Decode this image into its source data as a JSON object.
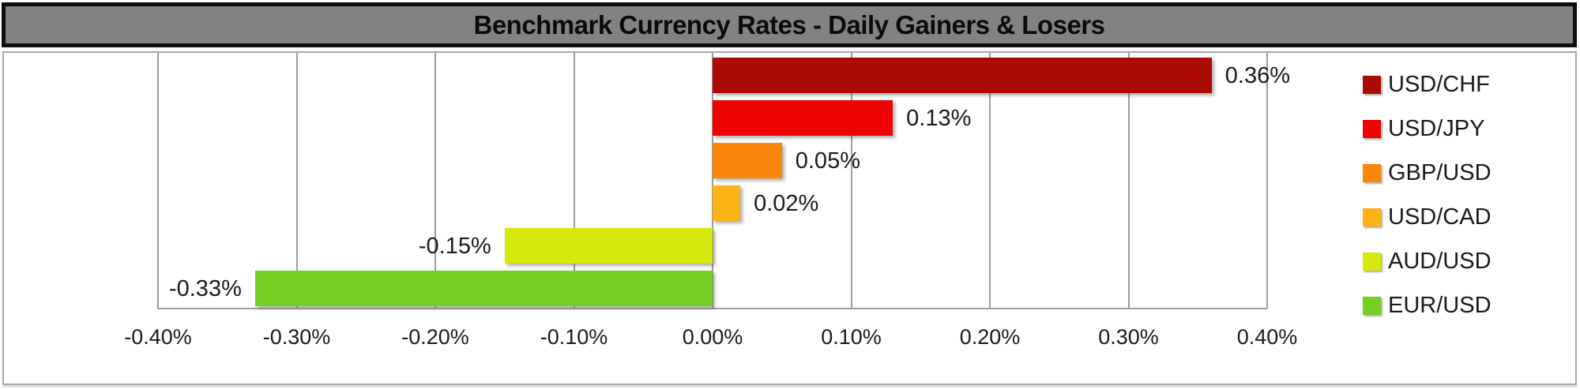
{
  "title": "Benchmark Currency Rates - Daily Gainers & Losers",
  "colors": {
    "title_background": "#828282",
    "title_border": "#0e0e0e",
    "chart_border": "#a6a6a6",
    "gridline": "#9d9d9d",
    "text": "#1a1a1a"
  },
  "chart_data": {
    "type": "bar",
    "orientation": "horizontal",
    "title": "Benchmark Currency Rates - Daily Gainers & Losers",
    "categories": [
      "USD/CHF",
      "USD/JPY",
      "GBP/USD",
      "USD/CAD",
      "AUD/USD",
      "EUR/USD"
    ],
    "values": [
      0.36,
      0.13,
      0.05,
      0.02,
      -0.15,
      -0.33
    ],
    "value_labels": [
      "0.36%",
      "0.13%",
      "0.05%",
      "0.02%",
      "-0.15%",
      "-0.33%"
    ],
    "bar_colors": [
      "#ab0a05",
      "#ee0202",
      "#f8870a",
      "#fbb315",
      "#d6e90b",
      "#75d023"
    ],
    "xlabel": "",
    "ylabel": "",
    "xlim": [
      -0.4,
      0.4
    ],
    "x_tick_values": [
      -0.4,
      -0.3,
      -0.2,
      -0.1,
      0.0,
      0.1,
      0.2,
      0.3,
      0.4
    ],
    "x_tick_labels": [
      "-0.40%",
      "-0.30%",
      "-0.20%",
      "-0.10%",
      "0.00%",
      "0.10%",
      "0.20%",
      "0.30%",
      "0.40%"
    ],
    "grid": true,
    "legend_position": "right",
    "legend": [
      {
        "label": "USD/CHF",
        "color": "#ab0a05"
      },
      {
        "label": "USD/JPY",
        "color": "#ee0202"
      },
      {
        "label": "GBP/USD",
        "color": "#f8870a"
      },
      {
        "label": "USD/CAD",
        "color": "#fbb315"
      },
      {
        "label": "AUD/USD",
        "color": "#d6e90b"
      },
      {
        "label": "EUR/USD",
        "color": "#75d023"
      }
    ]
  }
}
